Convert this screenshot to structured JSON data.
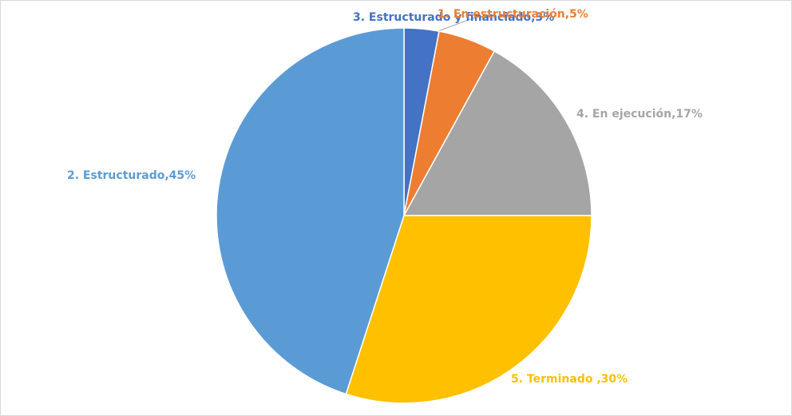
{
  "chart_data": {
    "type": "pie",
    "labels": [
      "3. Estructurado y financiado,3%",
      "1. En estructuración,5%",
      "4. En ejecución,17%",
      "5. Terminado ,30%",
      "2. Estructurado,45%"
    ],
    "values": [
      3,
      5,
      17,
      30,
      45
    ],
    "colors": [
      "#4472c4",
      "#ed7d31",
      "#a5a5a5",
      "#ffc000",
      "#5b9bd5"
    ]
  }
}
